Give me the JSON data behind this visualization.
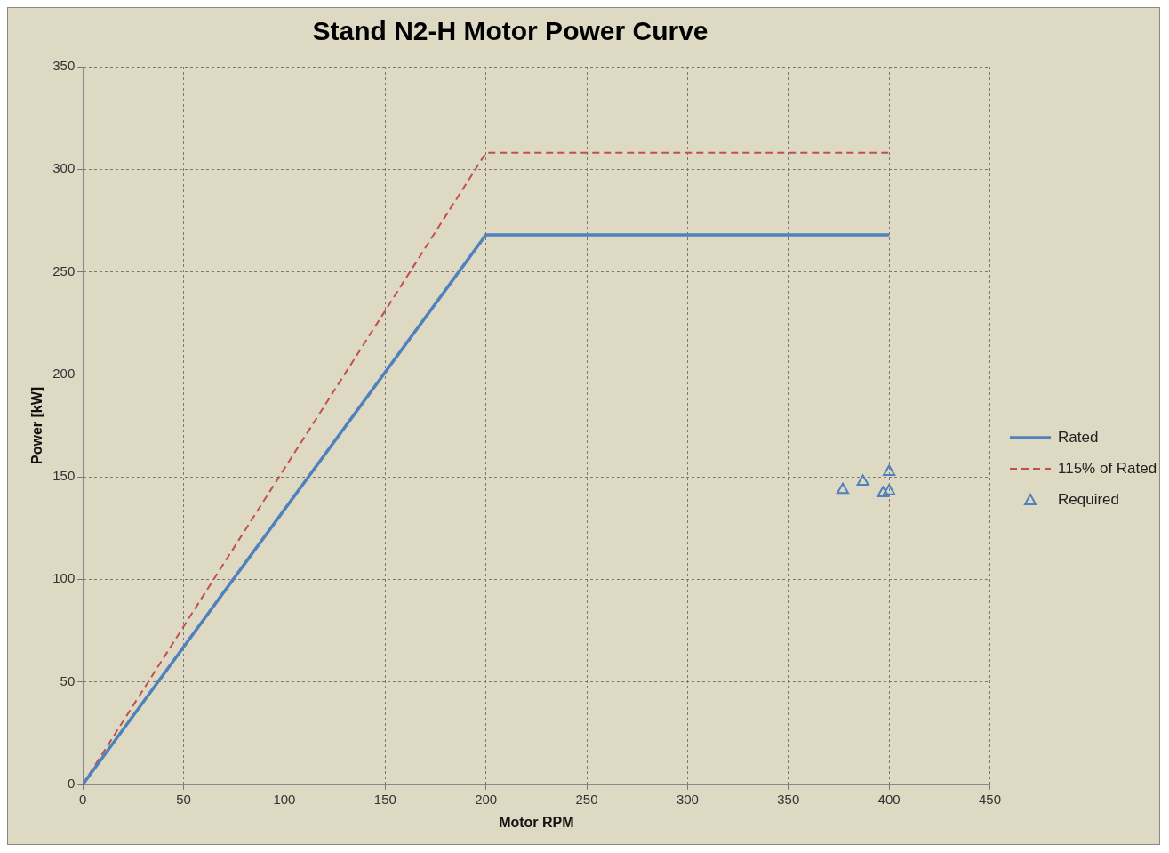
{
  "chart_data": {
    "type": "line",
    "title": "Stand N2-H Motor Power Curve",
    "xlabel": "Motor RPM",
    "ylabel": "Power [kW]",
    "xlim": [
      0,
      450
    ],
    "xticks": [
      0,
      50,
      100,
      150,
      200,
      250,
      300,
      350,
      400,
      450
    ],
    "ylim": [
      0,
      350
    ],
    "yticks": [
      0,
      50,
      100,
      150,
      200,
      250,
      300,
      350
    ],
    "grid": true,
    "legend": "right",
    "series": [
      {
        "name": "Rated",
        "type": "line",
        "color": "#4f81bd",
        "line_style": "solid",
        "marker": "none",
        "x": [
          0,
          200,
          400
        ],
        "values": [
          0,
          268,
          268
        ]
      },
      {
        "name": "115% of Rated",
        "type": "line",
        "color": "#c0504d",
        "line_style": "dashed",
        "marker": "none",
        "x": [
          0,
          200,
          400
        ],
        "values": [
          0,
          308,
          308
        ]
      },
      {
        "name": "Required",
        "type": "scatter",
        "color": "#4f81bd",
        "marker": "triangle",
        "x": [
          377,
          387,
          397,
          400,
          400
        ],
        "values": [
          143.6,
          147.6,
          142,
          152.4,
          143
        ]
      }
    ]
  }
}
